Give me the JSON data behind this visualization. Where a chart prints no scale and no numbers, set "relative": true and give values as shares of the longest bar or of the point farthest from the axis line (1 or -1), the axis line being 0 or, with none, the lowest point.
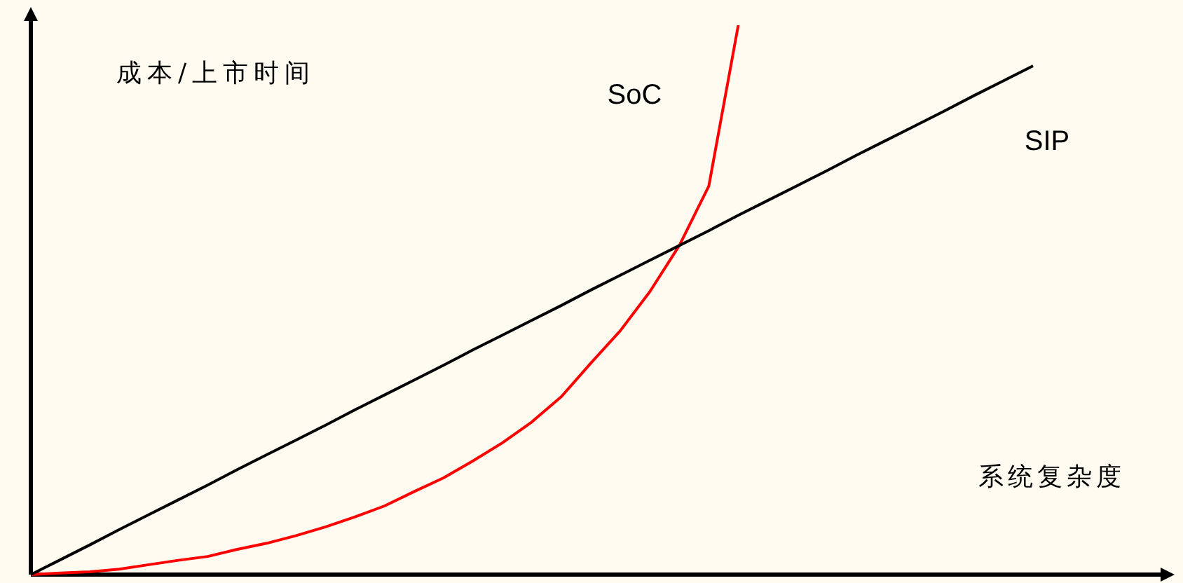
{
  "chart_data": {
    "type": "line",
    "relative": true,
    "xlabel": "系统复杂度",
    "ylabel": "成本/上市时间",
    "categories": [
      null,
      null,
      null,
      null,
      null,
      null,
      null,
      null,
      null,
      null,
      null,
      null,
      null,
      null,
      null,
      null,
      null,
      null,
      null,
      null,
      null,
      null,
      null,
      null,
      null,
      null,
      null,
      null,
      null,
      null,
      null,
      null,
      null,
      null,
      null
    ],
    "series": [
      {
        "name": "SoC",
        "color": "#ff0000",
        "values": [
          0,
          0.003,
          0.005,
          0.01,
          0.018,
          0.026,
          0.033,
          0.046,
          0.057,
          0.071,
          0.087,
          0.105,
          0.125,
          0.151,
          0.176,
          0.207,
          0.24,
          0.278,
          0.324,
          0.385,
          0.444,
          0.515,
          0.599,
          0.707,
          1.0,
          null,
          null,
          null,
          null,
          null,
          null,
          null,
          null,
          null,
          null
        ]
      },
      {
        "name": "SIP",
        "color": "#000000",
        "values": [
          0,
          0.027,
          0.054,
          0.082,
          0.109,
          0.136,
          0.163,
          0.191,
          0.218,
          0.245,
          0.272,
          0.3,
          0.327,
          0.354,
          0.381,
          0.409,
          0.436,
          0.463,
          0.49,
          0.518,
          0.545,
          0.572,
          0.599,
          0.626,
          0.654,
          0.681,
          0.708,
          0.735,
          0.763,
          0.79,
          0.817,
          0.844,
          0.872,
          0.899,
          0.926
        ]
      }
    ]
  }
}
